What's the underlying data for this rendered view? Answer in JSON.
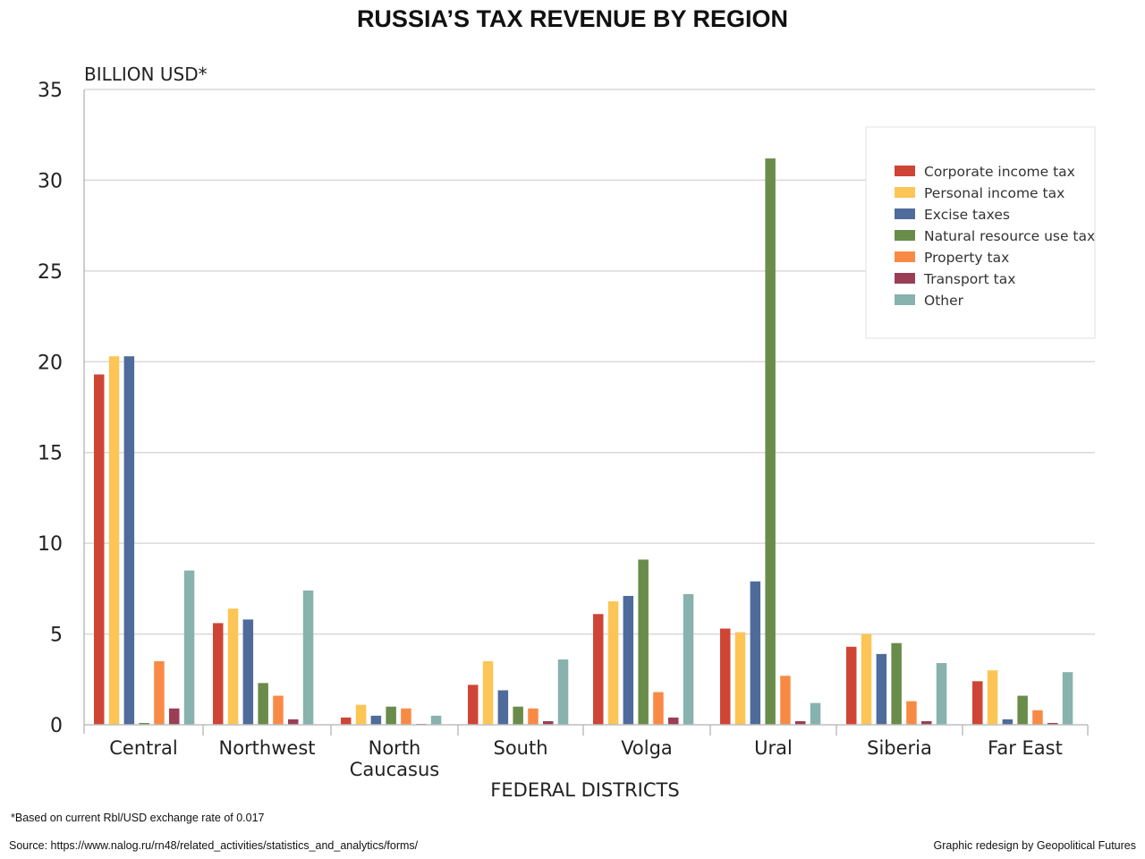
{
  "chart_data": {
    "type": "bar",
    "title": "RUSSIA’S TAX REVENUE BY REGION",
    "ylabel": "BILLION USD*",
    "xlabel": "FEDERAL DISTRICTS",
    "ylim": [
      0,
      35
    ],
    "yticks": [
      "0",
      "5",
      "10",
      "15",
      "20",
      "25",
      "30",
      "35"
    ],
    "grid": true,
    "legend_position": "top-right",
    "categories": [
      {
        "line1": "Central",
        "line2": ""
      },
      {
        "line1": "Northwest",
        "line2": ""
      },
      {
        "line1": "North",
        "line2": "Caucasus"
      },
      {
        "line1": "South",
        "line2": ""
      },
      {
        "line1": "Volga",
        "line2": ""
      },
      {
        "line1": "Ural",
        "line2": ""
      },
      {
        "line1": "Siberia",
        "line2": ""
      },
      {
        "line1": "Far East",
        "line2": ""
      }
    ],
    "series": [
      {
        "name": "Corporate income tax",
        "color": "#cf4535",
        "values": [
          19.3,
          5.6,
          0.4,
          2.2,
          6.1,
          5.3,
          4.3,
          2.4
        ]
      },
      {
        "name": "Personal income tax",
        "color": "#fcc556",
        "values": [
          20.3,
          6.4,
          1.1,
          3.5,
          6.8,
          5.1,
          5.0,
          3.0
        ]
      },
      {
        "name": "Excise taxes",
        "color": "#4f6b9c",
        "values": [
          20.3,
          5.8,
          0.5,
          1.9,
          7.1,
          7.9,
          3.9,
          0.3
        ]
      },
      {
        "name": "Natural resource use tax",
        "color": "#6a8c4a",
        "values": [
          0.1,
          2.3,
          1.0,
          1.0,
          9.1,
          31.2,
          4.5,
          1.6
        ]
      },
      {
        "name": "Property tax",
        "color": "#f98a45",
        "values": [
          3.5,
          1.6,
          0.9,
          0.9,
          1.8,
          2.7,
          1.3,
          0.8
        ]
      },
      {
        "name": "Transport tax",
        "color": "#9a3e55",
        "values": [
          0.9,
          0.3,
          0.05,
          0.2,
          0.4,
          0.2,
          0.2,
          0.1
        ]
      },
      {
        "name": "Other",
        "color": "#88b2ad",
        "values": [
          8.5,
          7.4,
          0.5,
          3.6,
          7.2,
          1.2,
          3.4,
          2.9
        ]
      }
    ]
  },
  "footnote": "*Based on current Rbl/USD exchange rate of 0.017",
  "source": "Source: https://www.nalog.ru/rn48/related_activities/statistics_and_analytics/forms/",
  "credit": "Graphic redesign by Geopolitical Futures"
}
